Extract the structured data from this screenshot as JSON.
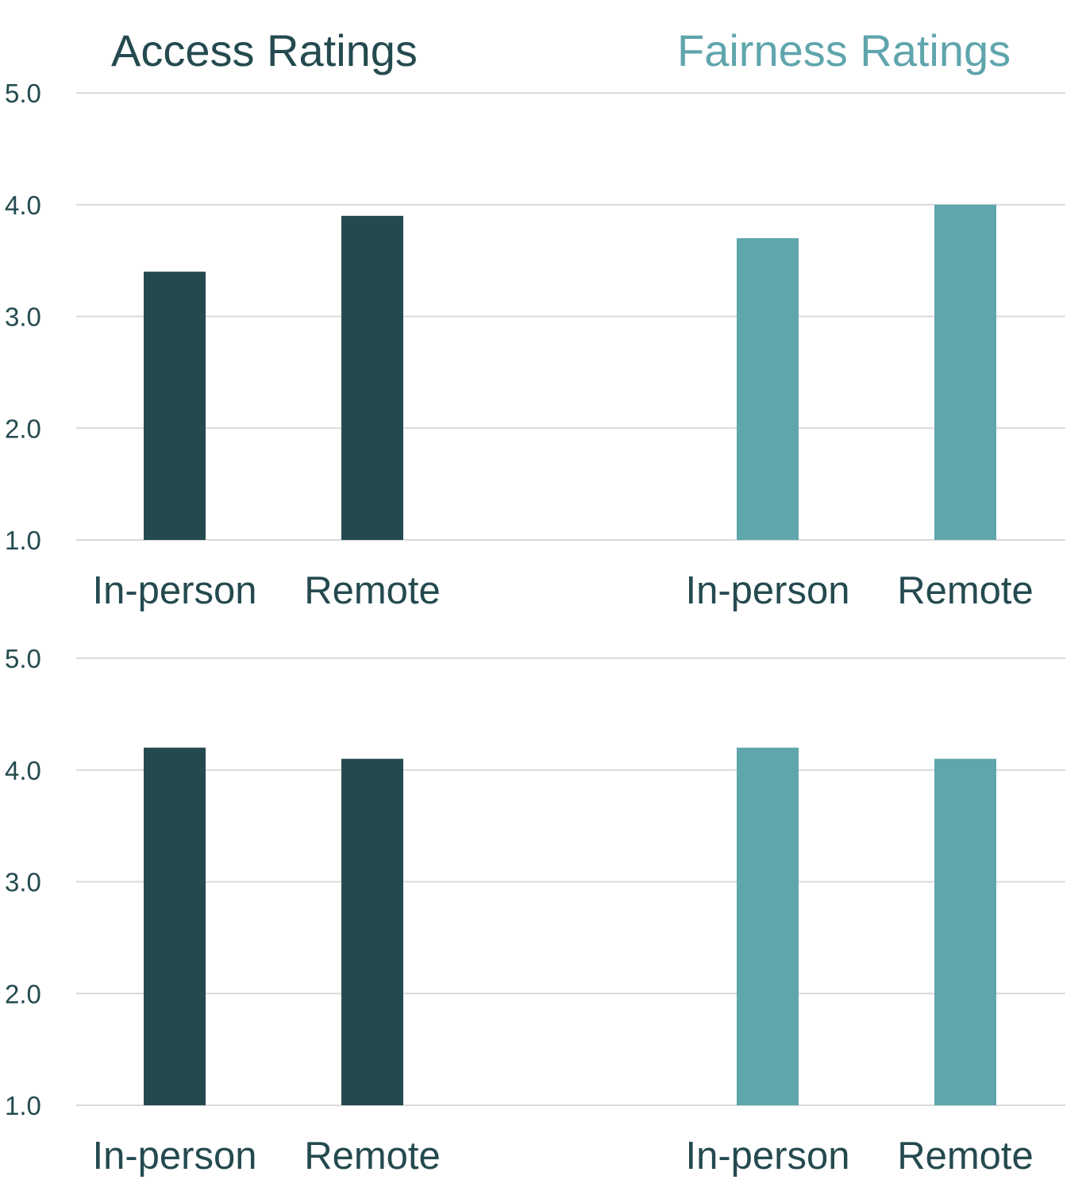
{
  "chart_data": {
    "type": "bar",
    "layout": "2x2 panels sharing a y-axis per row",
    "ylim": [
      1.0,
      5.0
    ],
    "yticks": [
      "1.0",
      "2.0",
      "3.0",
      "4.0",
      "5.0"
    ],
    "grid": true,
    "column_titles": [
      {
        "text": "Access Ratings",
        "color": "#244a4f"
      },
      {
        "text": "Fairness Ratings",
        "color": "#5fa5ac"
      }
    ],
    "categories": [
      "In-person",
      "Remote"
    ],
    "panels": [
      {
        "name": "Access Ratings - top",
        "row": 0,
        "col": 0,
        "color": "#244a4f",
        "values": [
          3.4,
          3.9
        ]
      },
      {
        "name": "Fairness Ratings - top",
        "row": 0,
        "col": 1,
        "color": "#5fa5ac",
        "values": [
          3.7,
          4.0
        ]
      },
      {
        "name": "Access Ratings - bottom",
        "row": 1,
        "col": 0,
        "color": "#244a4f",
        "values": [
          4.2,
          4.1
        ]
      },
      {
        "name": "Fairness Ratings - bottom",
        "row": 1,
        "col": 1,
        "color": "#5fa5ac",
        "values": [
          4.2,
          4.1
        ]
      }
    ]
  }
}
